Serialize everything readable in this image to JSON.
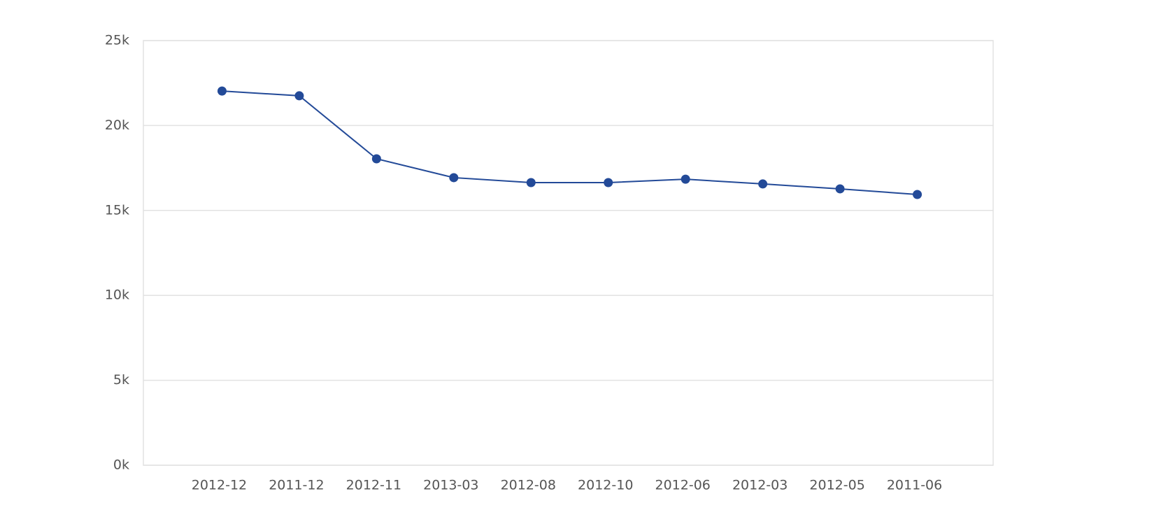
{
  "chart_data": {
    "type": "line",
    "categories": [
      "2012-12",
      "2011-12",
      "2012-11",
      "2013-03",
      "2012-08",
      "2012-10",
      "2012-06",
      "2012-03",
      "2012-05",
      "2011-06"
    ],
    "values": [
      22030,
      21750,
      18040,
      16930,
      16640,
      16640,
      16840,
      16560,
      16270,
      15940
    ],
    "color": "#234a98",
    "ylim": [
      0,
      25000
    ],
    "yticks": [
      {
        "value": 0,
        "label": "0k"
      },
      {
        "value": 5000,
        "label": "5k"
      },
      {
        "value": 10000,
        "label": "10k"
      },
      {
        "value": 15000,
        "label": "15k"
      },
      {
        "value": 20000,
        "label": "20k"
      },
      {
        "value": 25000,
        "label": "25k"
      }
    ],
    "grid": true
  }
}
